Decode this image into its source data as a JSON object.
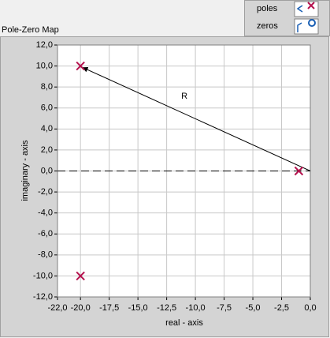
{
  "chart_data": {
    "type": "scatter",
    "title": "Pole-Zero Map",
    "x_label": "real - axis",
    "y_label": "imaginary - axis",
    "annotation": "R",
    "series": [
      {
        "name": "poles",
        "color": "#b5124e",
        "x": [
          -20,
          -20,
          -1
        ],
        "values": [
          10,
          -10,
          0
        ]
      },
      {
        "name": "zeros",
        "color": "#1a5fb4",
        "x": [],
        "values": []
      }
    ],
    "xlim": [
      -22,
      0
    ],
    "xticks": [
      {
        "value": -22,
        "label": "-22,0"
      },
      {
        "value": -20,
        "label": "-20,0"
      },
      {
        "value": -17.5,
        "label": "-17,5"
      },
      {
        "value": -15,
        "label": "-15,0"
      },
      {
        "value": -12.5,
        "label": "-12,5"
      },
      {
        "value": -10,
        "label": "-10,0"
      },
      {
        "value": -7.5,
        "label": "-7,5"
      },
      {
        "value": -5,
        "label": "-5,0"
      },
      {
        "value": -2.5,
        "label": "-2,5"
      },
      {
        "value": 0,
        "label": "0,0"
      }
    ],
    "ylim": [
      -12,
      12
    ],
    "yticks": [
      {
        "value": 12,
        "label": "12,0"
      },
      {
        "value": 10,
        "label": "10,0"
      },
      {
        "value": 8,
        "label": "8,0"
      },
      {
        "value": 6,
        "label": "6,0"
      },
      {
        "value": 4,
        "label": "4,0"
      },
      {
        "value": 2,
        "label": "2,0"
      },
      {
        "value": 0,
        "label": "0,0"
      },
      {
        "value": -2,
        "label": "-2,0"
      },
      {
        "value": -4,
        "label": "-4,0"
      },
      {
        "value": -6,
        "label": "-6,0"
      },
      {
        "value": -8,
        "label": "-8,0"
      },
      {
        "value": -10,
        "label": "-10,0"
      },
      {
        "value": -12,
        "label": "-12,0"
      }
    ],
    "grid": true
  }
}
